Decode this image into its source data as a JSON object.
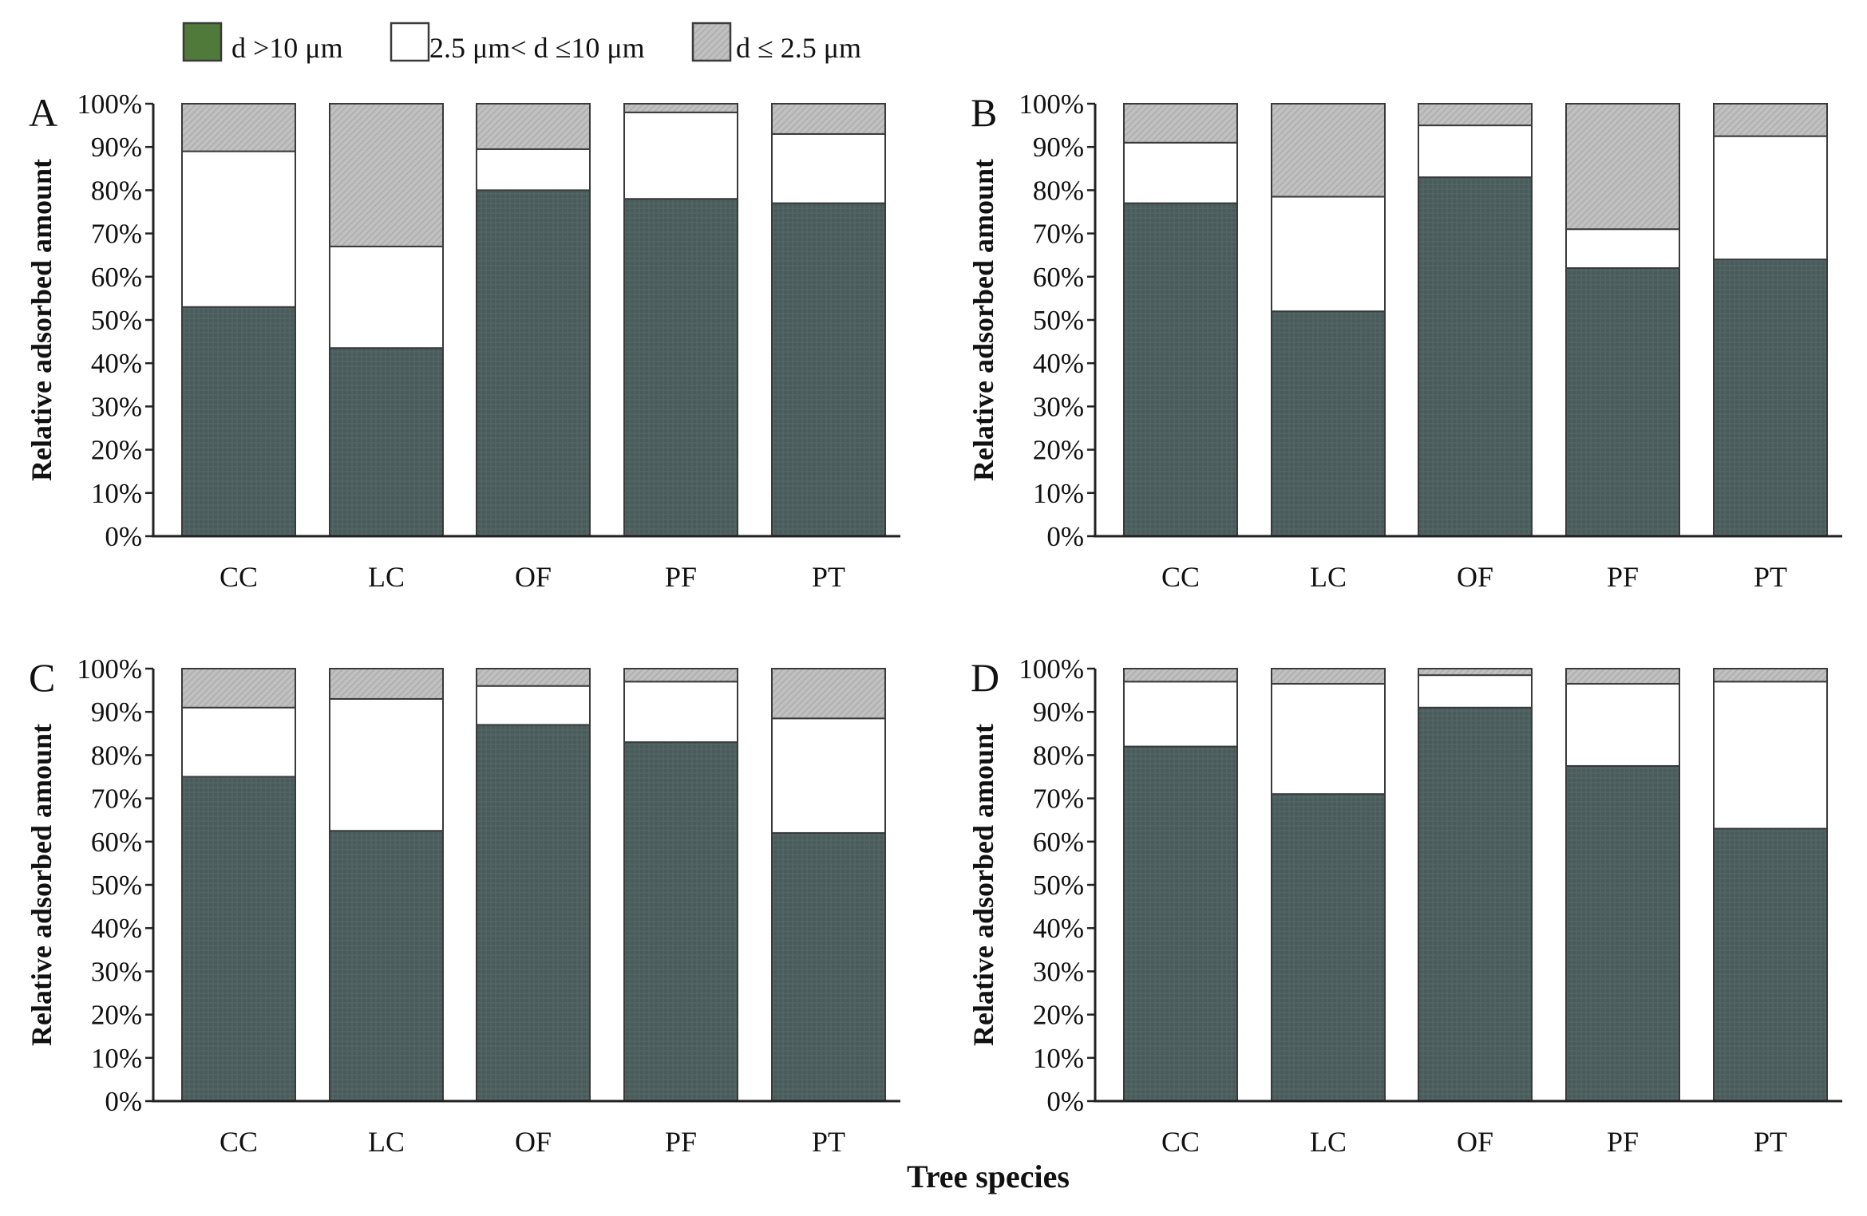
{
  "figure": {
    "xlabel": "Tree species",
    "legend": [
      {
        "label": "d >10 μm",
        "color": "#4a5c59",
        "swatch": "#4f7a3a"
      },
      {
        "label": "2.5 μm< d ≤10 μm",
        "color": "#ffffff",
        "swatch": "#ffffff"
      },
      {
        "label": "d ≤ 2.5 μm",
        "color": "#c0c0c0",
        "swatch": "#b8b8b8"
      }
    ],
    "outline_color": "#3a3a3a"
  },
  "chart_data": [
    {
      "type": "bar",
      "stacked": true,
      "panel": "A",
      "ylabel": "Relative adsorbed amount",
      "ylim": [
        0,
        100
      ],
      "yticks": [
        "0%",
        "10%",
        "20%",
        "30%",
        "40%",
        "50%",
        "60%",
        "70%",
        "80%",
        "90%",
        "100%"
      ],
      "categories": [
        "CC",
        "LC",
        "OF",
        "PF",
        "PT"
      ],
      "series": [
        {
          "name": "d >10 μm",
          "values": [
            53,
            43.5,
            80,
            78,
            77
          ]
        },
        {
          "name": "2.5 μm< d ≤10 μm",
          "values": [
            36,
            23.5,
            9.5,
            20,
            16
          ]
        },
        {
          "name": "d ≤ 2.5 μm",
          "values": [
            11,
            33,
            10.5,
            2,
            7
          ]
        }
      ]
    },
    {
      "type": "bar",
      "stacked": true,
      "panel": "B",
      "ylabel": "Relative adsorbed amount",
      "ylim": [
        0,
        100
      ],
      "yticks": [
        "0%",
        "10%",
        "20%",
        "30%",
        "40%",
        "50%",
        "60%",
        "70%",
        "80%",
        "90%",
        "100%"
      ],
      "categories": [
        "CC",
        "LC",
        "OF",
        "PF",
        "PT"
      ],
      "series": [
        {
          "name": "d >10 μm",
          "values": [
            77,
            52,
            83,
            62,
            64
          ]
        },
        {
          "name": "2.5 μm< d ≤10 μm",
          "values": [
            14,
            26.5,
            12,
            9,
            28.5
          ]
        },
        {
          "name": "d ≤ 2.5 μm",
          "values": [
            9,
            21.5,
            5,
            29,
            7.5
          ]
        }
      ]
    },
    {
      "type": "bar",
      "stacked": true,
      "panel": "C",
      "ylabel": "Relative adsorbed amount",
      "ylim": [
        0,
        100
      ],
      "yticks": [
        "0%",
        "10%",
        "20%",
        "30%",
        "40%",
        "50%",
        "60%",
        "70%",
        "80%",
        "90%",
        "100%"
      ],
      "categories": [
        "CC",
        "LC",
        "OF",
        "PF",
        "PT"
      ],
      "series": [
        {
          "name": "d >10 μm",
          "values": [
            75,
            62.5,
            87,
            83,
            62
          ]
        },
        {
          "name": "2.5 μm< d ≤10 μm",
          "values": [
            16,
            30.5,
            9,
            14,
            26.5
          ]
        },
        {
          "name": "d ≤ 2.5 μm",
          "values": [
            9,
            7,
            4,
            3,
            11.5
          ]
        }
      ]
    },
    {
      "type": "bar",
      "stacked": true,
      "panel": "D",
      "ylabel": "Relative adsorbed amount",
      "ylim": [
        0,
        100
      ],
      "yticks": [
        "0%",
        "10%",
        "20%",
        "30%",
        "40%",
        "50%",
        "60%",
        "70%",
        "80%",
        "90%",
        "100%"
      ],
      "categories": [
        "CC",
        "LC",
        "OF",
        "PF",
        "PT"
      ],
      "series": [
        {
          "name": "d >10 μm",
          "values": [
            82,
            71,
            91,
            77.5,
            63
          ]
        },
        {
          "name": "2.5 μm< d ≤10 μm",
          "values": [
            15,
            25.5,
            7.5,
            19,
            34
          ]
        },
        {
          "name": "d ≤ 2.5 μm",
          "values": [
            3,
            3.5,
            1.5,
            3.5,
            3
          ]
        }
      ]
    }
  ]
}
